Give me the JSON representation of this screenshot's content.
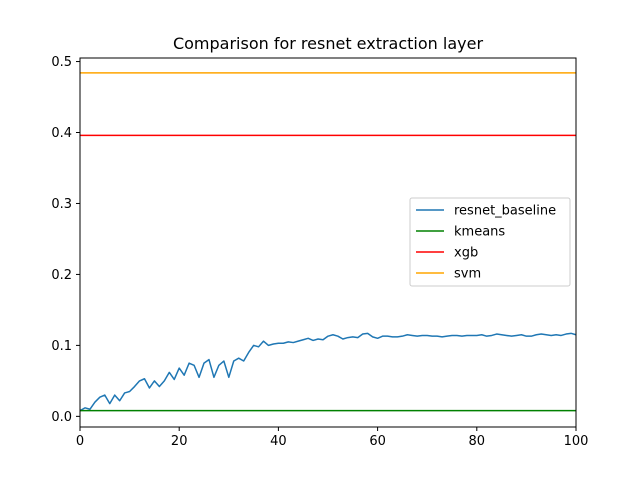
{
  "chart_data": {
    "type": "line",
    "title": "Comparison for resnet extraction layer",
    "xlabel": "",
    "ylabel": "",
    "xlim": [
      0,
      100
    ],
    "ylim": [
      -0.015,
      0.505
    ],
    "x_ticks": [
      0,
      20,
      40,
      60,
      80,
      100
    ],
    "y_ticks": [
      0.0,
      0.1,
      0.2,
      0.3,
      0.4,
      0.5
    ],
    "x_tick_labels": [
      "0",
      "20",
      "40",
      "60",
      "80",
      "100"
    ],
    "y_tick_labels": [
      "0.0",
      "0.1",
      "0.2",
      "0.3",
      "0.4",
      "0.5"
    ],
    "grid": false,
    "legend_position": "center-right",
    "series": [
      {
        "name": "resnet_baseline",
        "color": "#1f77b4",
        "x": [
          0,
          1,
          2,
          3,
          4,
          5,
          6,
          7,
          8,
          9,
          10,
          11,
          12,
          13,
          14,
          15,
          16,
          17,
          18,
          19,
          20,
          21,
          22,
          23,
          24,
          25,
          26,
          27,
          28,
          29,
          30,
          31,
          32,
          33,
          34,
          35,
          36,
          37,
          38,
          39,
          40,
          41,
          42,
          43,
          44,
          45,
          46,
          47,
          48,
          49,
          50,
          51,
          52,
          53,
          54,
          55,
          56,
          57,
          58,
          59,
          60,
          61,
          62,
          63,
          64,
          65,
          66,
          67,
          68,
          69,
          70,
          71,
          72,
          73,
          74,
          75,
          76,
          77,
          78,
          79,
          80,
          81,
          82,
          83,
          84,
          85,
          86,
          87,
          88,
          89,
          90,
          91,
          92,
          93,
          94,
          95,
          96,
          97,
          98,
          99,
          100
        ],
        "values": [
          0.008,
          0.012,
          0.01,
          0.02,
          0.027,
          0.03,
          0.018,
          0.03,
          0.022,
          0.033,
          0.035,
          0.042,
          0.05,
          0.053,
          0.04,
          0.05,
          0.042,
          0.05,
          0.062,
          0.052,
          0.068,
          0.058,
          0.075,
          0.072,
          0.055,
          0.075,
          0.08,
          0.055,
          0.072,
          0.078,
          0.055,
          0.078,
          0.082,
          0.078,
          0.09,
          0.1,
          0.098,
          0.106,
          0.1,
          0.102,
          0.103,
          0.103,
          0.105,
          0.104,
          0.106,
          0.108,
          0.11,
          0.107,
          0.109,
          0.108,
          0.113,
          0.115,
          0.113,
          0.109,
          0.111,
          0.112,
          0.111,
          0.116,
          0.117,
          0.112,
          0.11,
          0.113,
          0.113,
          0.112,
          0.112,
          0.113,
          0.115,
          0.114,
          0.113,
          0.114,
          0.114,
          0.113,
          0.113,
          0.112,
          0.113,
          0.114,
          0.114,
          0.113,
          0.114,
          0.114,
          0.114,
          0.115,
          0.113,
          0.114,
          0.116,
          0.115,
          0.114,
          0.113,
          0.114,
          0.115,
          0.113,
          0.113,
          0.115,
          0.116,
          0.115,
          0.114,
          0.115,
          0.114,
          0.116,
          0.117,
          0.115
        ]
      },
      {
        "name": "kmeans",
        "color": "#008000",
        "constant": 0.008
      },
      {
        "name": "xgb",
        "color": "#ff0000",
        "constant": 0.396
      },
      {
        "name": "svm",
        "color": "#ffa500",
        "constant": 0.484
      }
    ]
  }
}
